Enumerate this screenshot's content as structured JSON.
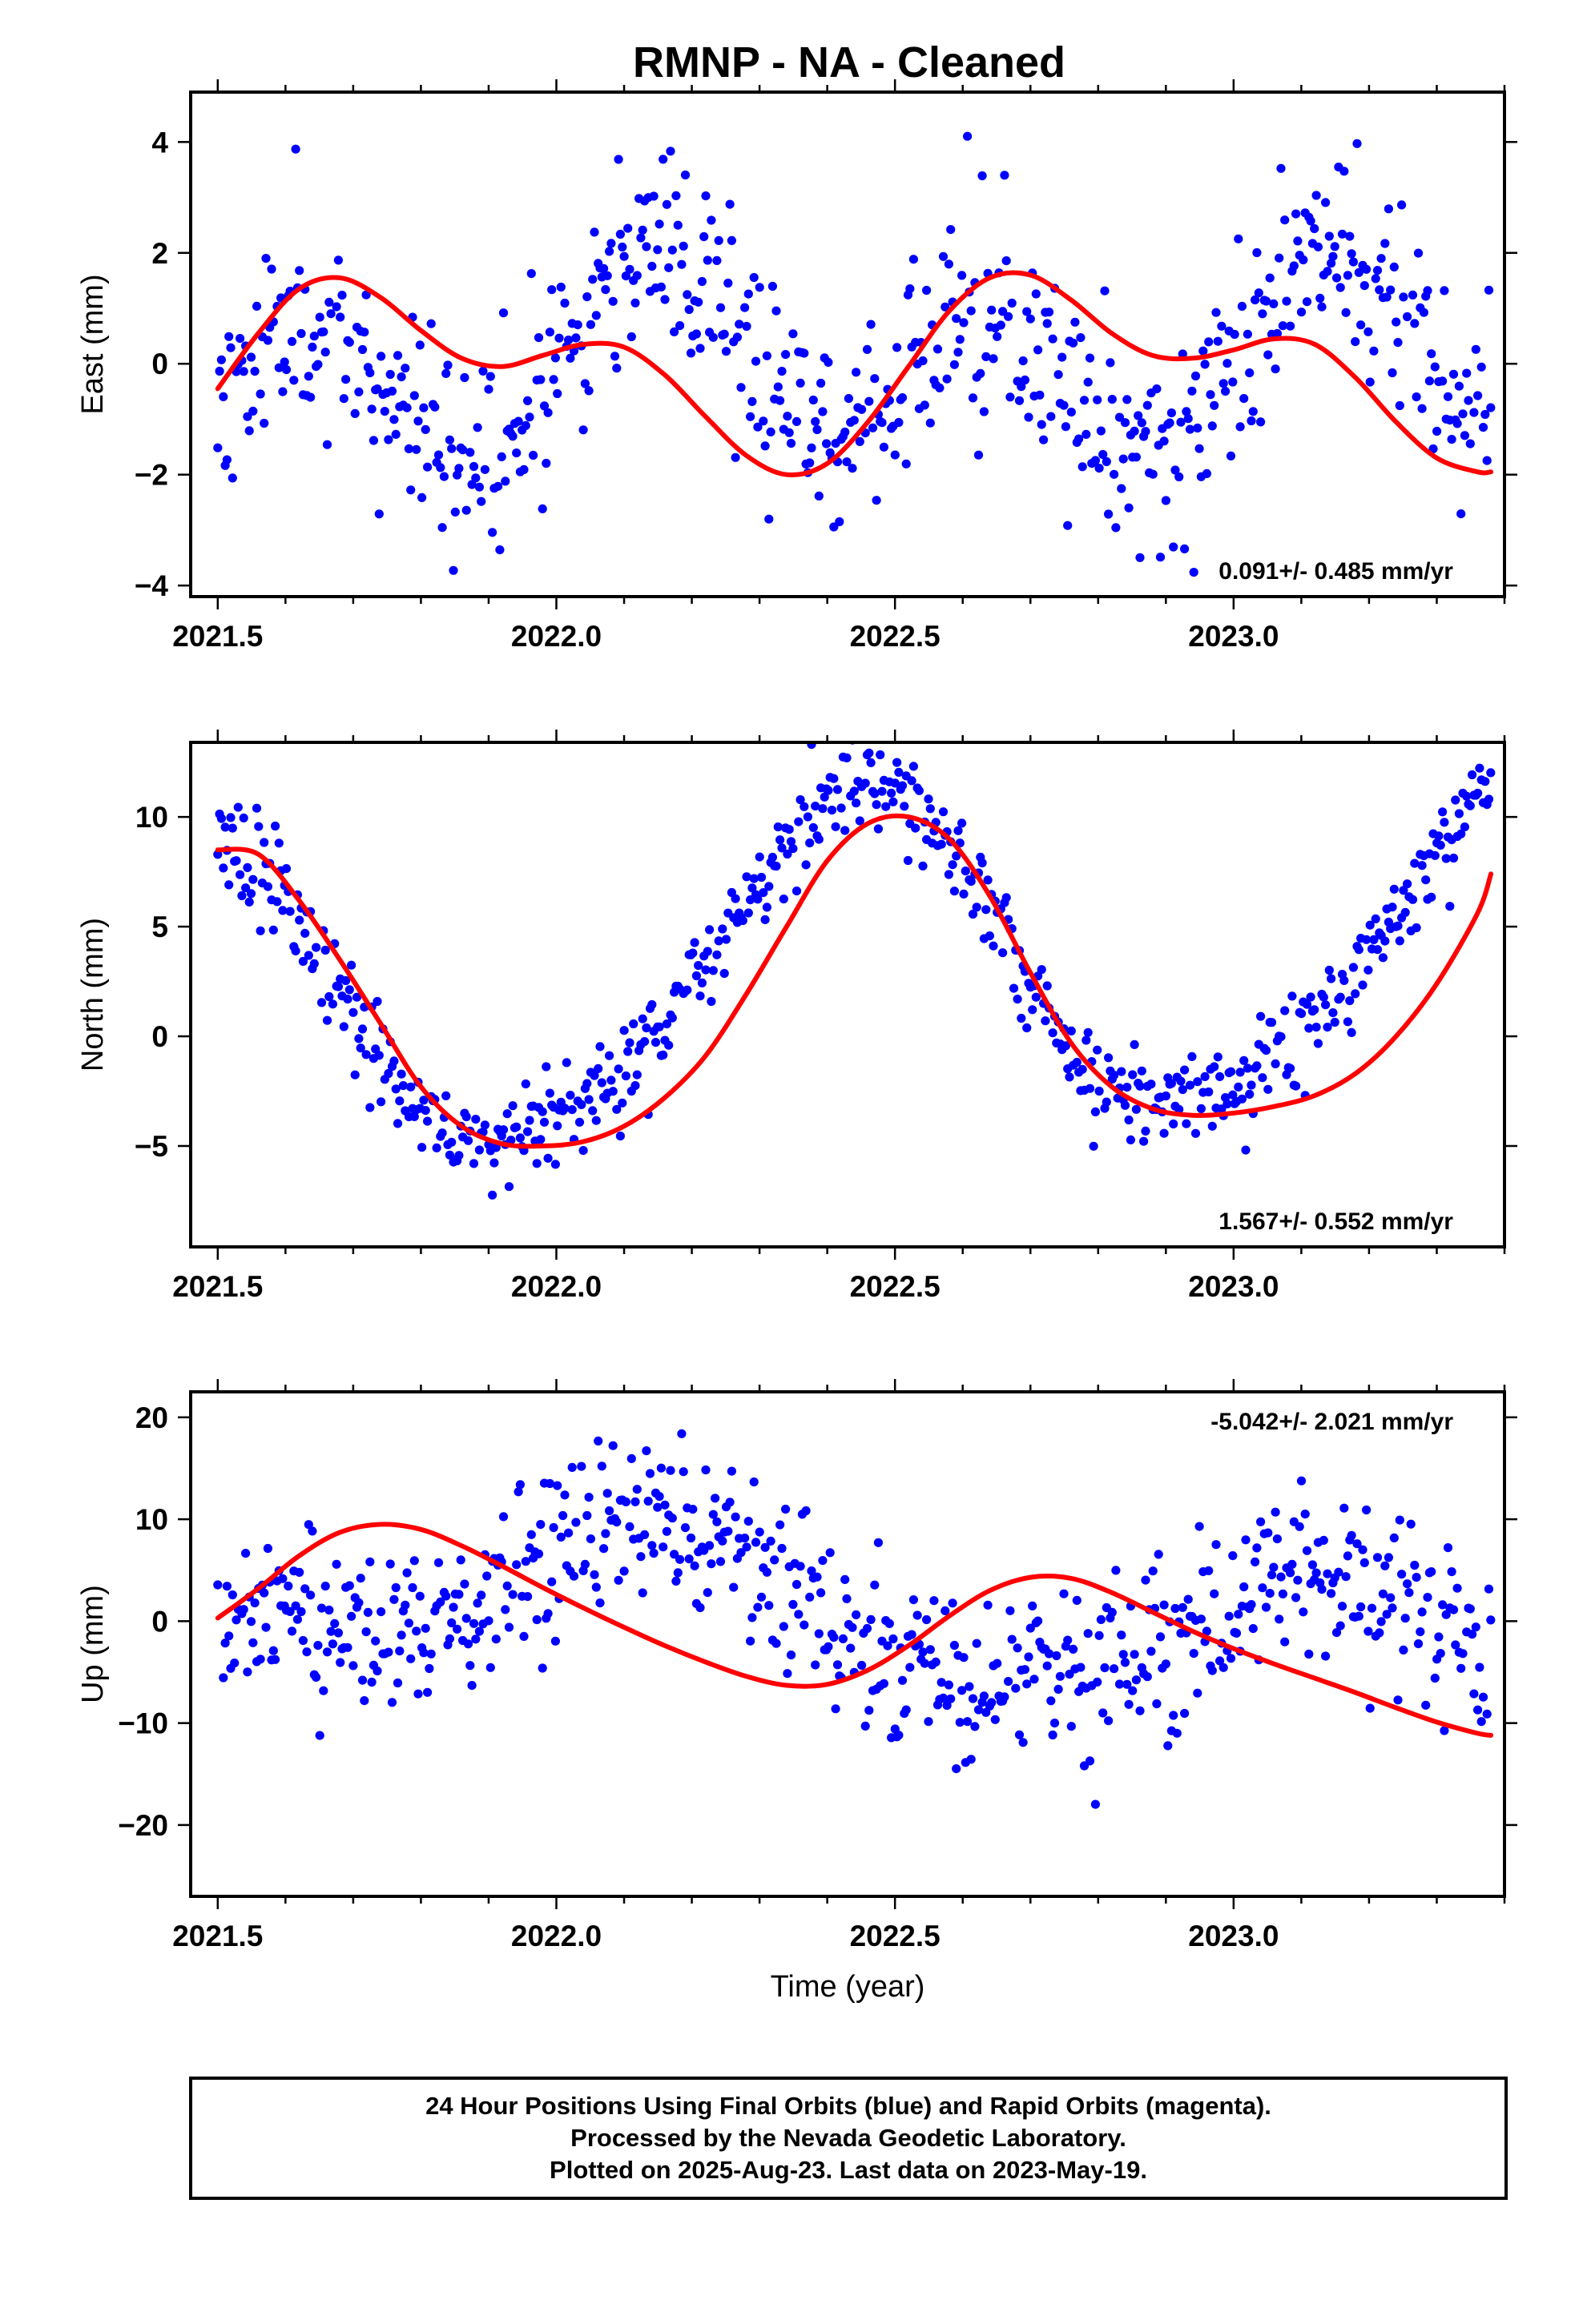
{
  "figure": {
    "title": "RMNP  - NA - Cleaned",
    "footer": [
      "24 Hour Positions Using Final Orbits (blue) and Rapid Orbits (magenta).",
      "Processed by the Nevada Geodetic Laboratory.",
      "Plotted on 2025-Aug-23. Last data on 2023-May-19."
    ],
    "colors": {
      "final_orbits": "#0000ff",
      "rapid_orbits": "#ff00ff",
      "fit": "#ff0000",
      "frame": "#000000"
    }
  },
  "chart_data": [
    {
      "type": "scatter",
      "panel": "east",
      "title": "RMNP  - NA - Cleaned",
      "ylabel": "East (mm)",
      "xlabel": "",
      "xlim": [
        2021.46,
        2023.4
      ],
      "ylim": [
        -4.2,
        4.9
      ],
      "xticks": [
        2021.5,
        2022.0,
        2022.5,
        2023.0
      ],
      "xtick_labels": [
        "2021.5",
        "2022.0",
        "2022.5",
        "2023.0"
      ],
      "yticks": [
        -4,
        -2,
        0,
        2,
        4
      ],
      "ytick_labels": [
        "−4",
        "−2",
        "0",
        "2",
        "4"
      ],
      "rate": "0.091+/- 0.485 mm/yr",
      "rate_position": "bottom-right",
      "grid": false,
      "series": [
        {
          "kind": "points",
          "color": "#0000ff",
          "model": {
            "t0": 2021.95,
            "offset": -0.05,
            "trend": 0.091,
            "annual_cos": 0.05,
            "annual_sin": 0.75,
            "semi_cos": -0.95,
            "semi_sin": 0.9,
            "x_start": 2021.5,
            "x_end": 2023.38,
            "step": 0.00274,
            "noise": 0.95,
            "seed": 11
          }
        },
        {
          "kind": "fit",
          "color": "#ff0000",
          "x": [
            2021.5,
            2021.56,
            2021.62,
            2021.68,
            2021.74,
            2021.8,
            2021.86,
            2021.92,
            2021.98,
            2022.04,
            2022.1,
            2022.16,
            2022.22,
            2022.28,
            2022.34,
            2022.4,
            2022.46,
            2022.52,
            2022.58,
            2022.64,
            2022.7,
            2022.76,
            2022.82,
            2022.88,
            2022.94,
            2023.0,
            2023.06,
            2023.12,
            2023.18,
            2023.24,
            2023.3,
            2023.36,
            2023.38
          ],
          "y": [
            -0.45,
            0.55,
            1.35,
            1.55,
            1.2,
            0.6,
            0.1,
            -0.05,
            0.15,
            0.35,
            0.3,
            -0.2,
            -0.95,
            -1.65,
            -2.0,
            -1.8,
            -1.05,
            -0.05,
            0.95,
            1.55,
            1.6,
            1.15,
            0.55,
            0.15,
            0.1,
            0.25,
            0.45,
            0.35,
            -0.25,
            -1.05,
            -1.7,
            -1.95,
            -1.95
          ]
        }
      ]
    },
    {
      "type": "scatter",
      "panel": "north",
      "title": "",
      "ylabel": "North (mm)",
      "xlabel": "",
      "xlim": [
        2021.46,
        2023.4
      ],
      "ylim": [
        -9.6,
        13.4
      ],
      "xticks": [
        2021.5,
        2022.0,
        2022.5,
        2023.0
      ],
      "xtick_labels": [
        "2021.5",
        "2022.0",
        "2022.5",
        "2023.0"
      ],
      "yticks": [
        -5,
        0,
        5,
        10
      ],
      "ytick_labels": [
        "−5",
        "0",
        "5",
        "10"
      ],
      "rate": "1.567+/- 0.552 mm/yr",
      "rate_position": "bottom-right",
      "grid": false,
      "series": [
        {
          "kind": "points",
          "color": "#0000ff",
          "model": {
            "t0": 2021.95,
            "offset": 2.3,
            "trend": 1.567,
            "annual_cos": -7.6,
            "annual_sin": 0.4,
            "semi_cos": 0.9,
            "semi_sin": 0.6,
            "x_start": 2021.5,
            "x_end": 2023.38,
            "step": 0.00274,
            "noise": 1.15,
            "seed": 23
          }
        },
        {
          "kind": "fit",
          "color": "#ff0000",
          "x": [
            2021.5,
            2021.56,
            2021.62,
            2021.68,
            2021.74,
            2021.8,
            2021.86,
            2021.92,
            2021.98,
            2022.04,
            2022.1,
            2022.16,
            2022.22,
            2022.28,
            2022.34,
            2022.4,
            2022.46,
            2022.52,
            2022.58,
            2022.64,
            2022.7,
            2022.76,
            2022.82,
            2022.88,
            2022.94,
            2023.0,
            2023.06,
            2023.12,
            2023.18,
            2023.24,
            2023.3,
            2023.36,
            2023.38
          ],
          "y": [
            8.5,
            8.3,
            6.2,
            3.5,
            0.6,
            -2.3,
            -4.1,
            -4.9,
            -5.0,
            -4.8,
            -4.1,
            -2.8,
            -0.9,
            1.9,
            5.0,
            8.0,
            9.7,
            10.0,
            9.0,
            6.4,
            2.9,
            -0.3,
            -2.3,
            -3.3,
            -3.6,
            -3.5,
            -3.2,
            -2.7,
            -1.7,
            0.0,
            2.4,
            5.6,
            7.4
          ]
        }
      ]
    },
    {
      "type": "scatter",
      "panel": "up",
      "title": "",
      "ylabel": "Up (mm)",
      "xlabel": "Time (year)",
      "xlim": [
        2021.46,
        2023.4
      ],
      "ylim": [
        -27.0,
        22.5
      ],
      "xticks": [
        2021.5,
        2022.0,
        2022.5,
        2023.0
      ],
      "xtick_labels": [
        "2021.5",
        "2022.0",
        "2022.5",
        "2023.0"
      ],
      "yticks": [
        -20,
        -10,
        0,
        10,
        20
      ],
      "ytick_labels": [
        "−20",
        "−10",
        "0",
        "10",
        "20"
      ],
      "rate": "-5.042+/- 2.021 mm/yr",
      "rate_position": "top-right",
      "grid": false,
      "series": [
        {
          "kind": "points",
          "color": "#0000ff",
          "model": {
            "t0": 2021.95,
            "offset": 3.2,
            "trend": -5.042,
            "annual_cos": 2.0,
            "annual_sin": 6.4,
            "semi_cos": -0.8,
            "semi_sin": 0.5,
            "x_start": 2021.5,
            "x_end": 2023.38,
            "step": 0.00274,
            "noise": 4.3,
            "seed": 37
          }
        },
        {
          "kind": "fit",
          "color": "#ff0000",
          "x": [
            2021.5,
            2021.56,
            2021.62,
            2021.68,
            2021.74,
            2021.8,
            2021.86,
            2021.92,
            2021.98,
            2022.04,
            2022.1,
            2022.16,
            2022.22,
            2022.28,
            2022.34,
            2022.4,
            2022.46,
            2022.52,
            2022.58,
            2022.64,
            2022.7,
            2022.76,
            2022.82,
            2022.88,
            2022.94,
            2023.0,
            2023.06,
            2023.12,
            2023.18,
            2023.24,
            2023.3,
            2023.36,
            2023.38
          ],
          "y": [
            0.3,
            3.2,
            6.4,
            8.7,
            9.5,
            9.0,
            7.4,
            5.4,
            3.3,
            1.3,
            -0.6,
            -2.4,
            -4.0,
            -5.4,
            -6.3,
            -6.2,
            -4.8,
            -2.4,
            0.5,
            3.0,
            4.3,
            4.2,
            2.8,
            0.9,
            -1.0,
            -2.7,
            -4.2,
            -5.6,
            -7.0,
            -8.5,
            -9.9,
            -11.0,
            -11.2
          ]
        }
      ]
    }
  ]
}
